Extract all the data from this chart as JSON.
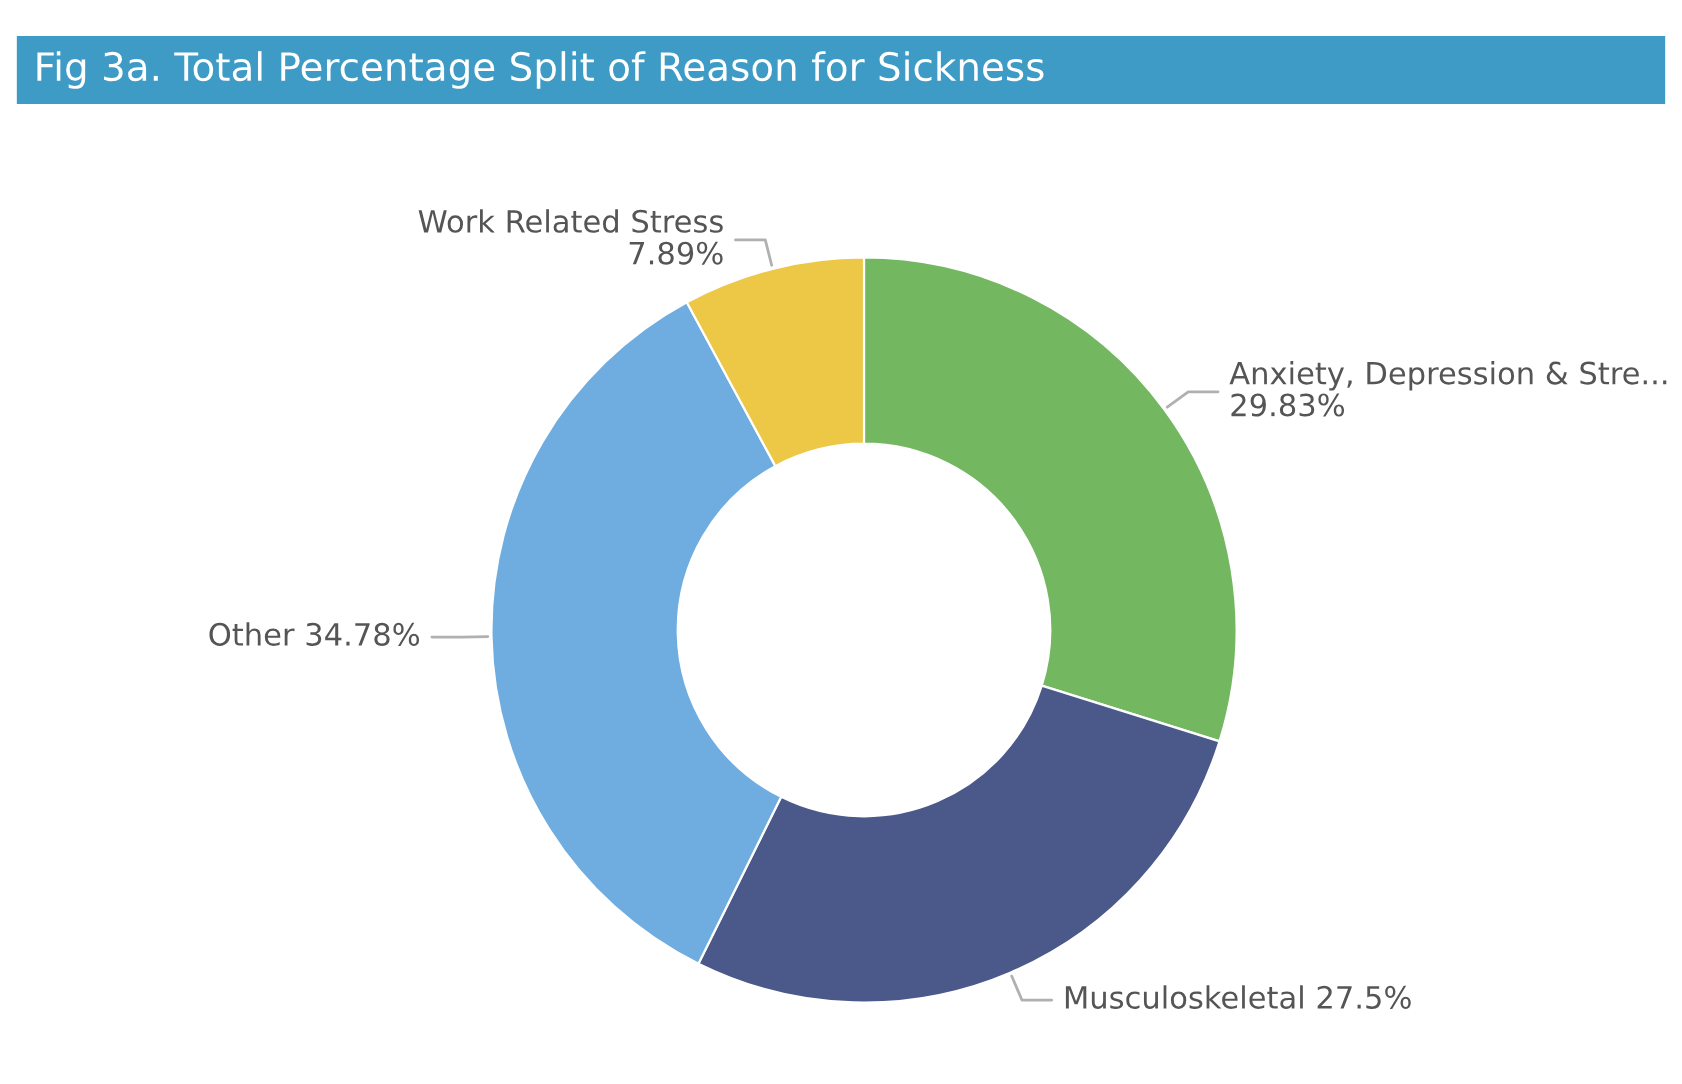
{
  "chart_data": {
    "type": "donut",
    "title": "Fig 3a. Total Percentage Split of Reason for Sickness",
    "categories": [
      "Anxiety, Depression & Stre...",
      "Musculoskeletal",
      "Other",
      "Work Related Stress"
    ],
    "values": [
      29.83,
      27.5,
      34.78,
      7.89
    ],
    "value_labels": [
      "29.83%",
      "27.5%",
      "34.78%",
      "7.89%"
    ],
    "colors": [
      "#73b761",
      "#4a588a",
      "#6fade0",
      "#ecc846"
    ],
    "legend": false
  }
}
